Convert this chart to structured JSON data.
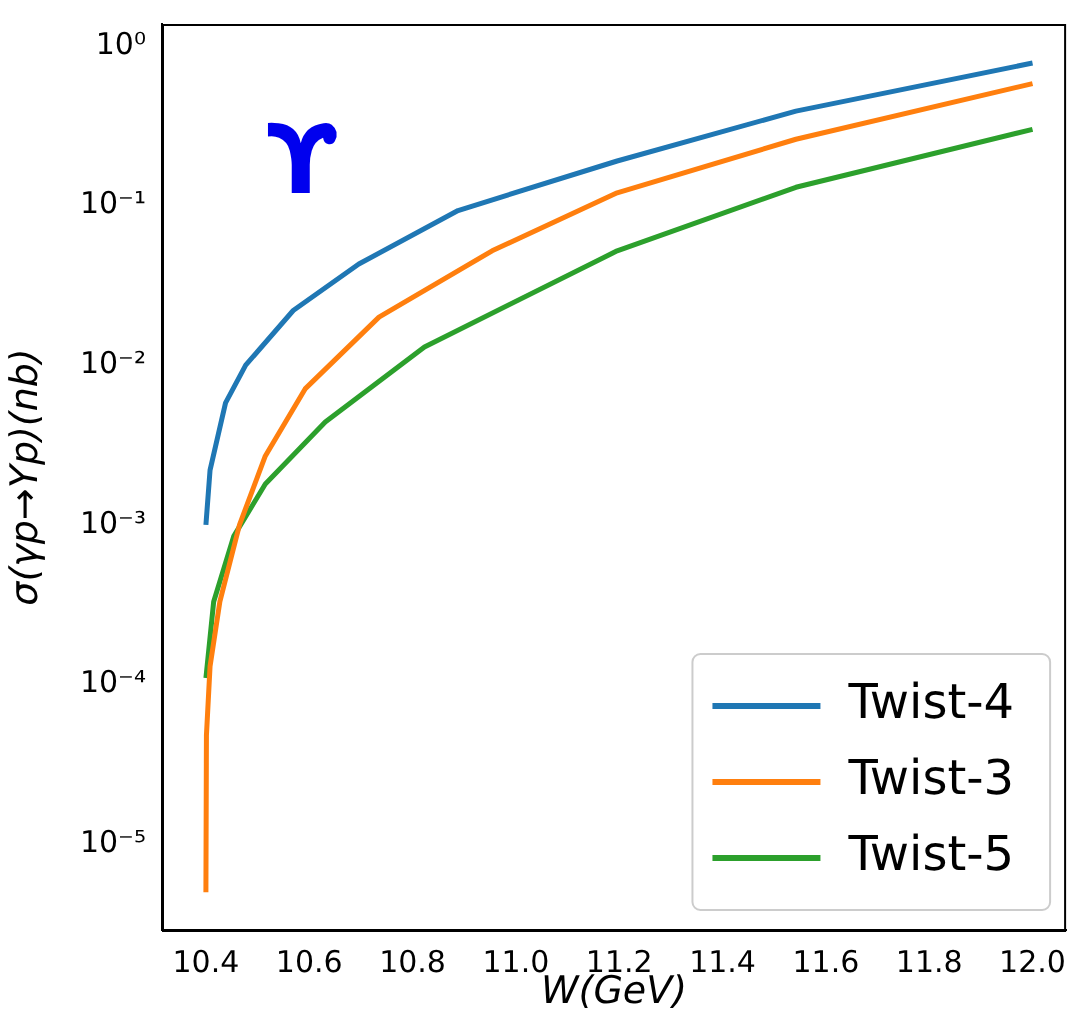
{
  "chart_data": {
    "type": "line",
    "xlabel": "W(GeV)",
    "ylabel": "σ(γp→Υp)(nb)",
    "annotations": [
      "ϒ"
    ],
    "log": "y",
    "grid": false,
    "legend": "bottom right",
    "marker": "none",
    "line_style": "solid",
    "xlim": [
      10.315,
      12.065
    ],
    "ylim": [
      2.9e-06,
      1.37
    ],
    "xticks": [
      10.4,
      10.6,
      10.8,
      {
        "value": 11,
        "label": "11.0"
      },
      11.2,
      11.4,
      11.6,
      11.8,
      {
        "value": 12,
        "label": "12.0"
      }
    ],
    "yticks": [
      {
        "value": 1e-05,
        "label": "10⁻⁵"
      },
      {
        "value": 0.0001,
        "label": "10⁻⁴"
      },
      {
        "value": 0.001,
        "label": "10⁻³"
      },
      {
        "value": 0.01,
        "label": "10⁻²"
      },
      {
        "value": 0.1,
        "label": "10⁻¹"
      },
      {
        "value": 1,
        "label": "10⁰"
      }
    ],
    "series": [
      {
        "name": "Twist-4",
        "color": "#1f77b4",
        "x": [
          10.4,
          10.408,
          10.438,
          10.477,
          10.569,
          10.696,
          10.888,
          11.196,
          11.542,
          12.0
        ],
        "values": [
          0.001,
          0.0022,
          0.0058,
          0.01,
          0.022,
          0.043,
          0.093,
          0.19,
          0.39,
          0.78
        ]
      },
      {
        "name": "Twist-3",
        "color": "#ff7f0e",
        "x": [
          10.4,
          10.401,
          10.408,
          10.427,
          10.465,
          10.515,
          10.592,
          10.735,
          10.954,
          11.196,
          11.542,
          12.0
        ],
        "values": [
          5e-06,
          4.8e-05,
          0.00013,
          0.00033,
          0.001,
          0.0027,
          0.0071,
          0.02,
          0.052,
          0.12,
          0.26,
          0.58
        ]
      },
      {
        "name": "Twist-5",
        "color": "#2ca02c",
        "x": [
          10.4,
          10.415,
          10.454,
          10.515,
          10.631,
          10.823,
          11.196,
          11.542,
          12.0
        ],
        "values": [
          0.00011,
          0.00033,
          0.00085,
          0.0018,
          0.0044,
          0.013,
          0.052,
          0.13,
          0.3
        ]
      }
    ]
  }
}
